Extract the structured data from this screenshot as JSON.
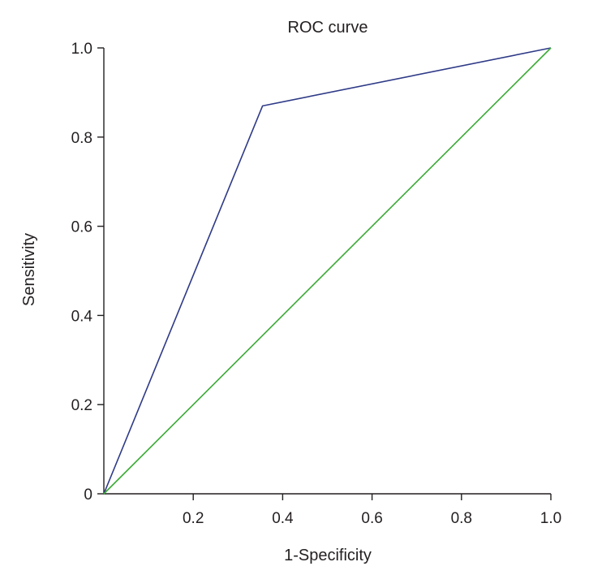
{
  "chart_data": {
    "type": "line",
    "title": "ROC curve",
    "xlabel": "1-Specificity",
    "ylabel": "Sensitivity",
    "xlim": [
      0,
      1
    ],
    "ylim": [
      0,
      1
    ],
    "x_ticks": [
      {
        "value": 0.2,
        "label": "0.2"
      },
      {
        "value": 0.4,
        "label": "0.4"
      },
      {
        "value": 0.6,
        "label": "0.6"
      },
      {
        "value": 0.8,
        "label": "0.8"
      },
      {
        "value": 1.0,
        "label": "1.0"
      }
    ],
    "y_ticks": [
      {
        "value": 0,
        "label": "0"
      },
      {
        "value": 0.2,
        "label": "0.2"
      },
      {
        "value": 0.4,
        "label": "0.4"
      },
      {
        "value": 0.6,
        "label": "0.6"
      },
      {
        "value": 0.8,
        "label": "0.8"
      },
      {
        "value": 1.0,
        "label": "1.0"
      }
    ],
    "grid": false,
    "legend": "none",
    "series": [
      {
        "color": "#2e3a87",
        "points": [
          {
            "x": 0,
            "y": 0
          },
          {
            "x": 0.355,
            "y": 0.87
          },
          {
            "x": 1.0,
            "y": 1.0
          }
        ]
      },
      {
        "color": "#3aaa35",
        "points": [
          {
            "x": 0,
            "y": 0
          },
          {
            "x": 1.0,
            "y": 1.0
          }
        ]
      }
    ]
  }
}
